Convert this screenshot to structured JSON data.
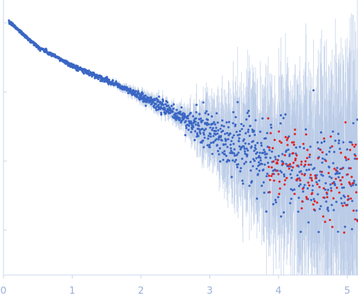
{
  "chart_data": {
    "type": "scatter",
    "title": "",
    "xlabel": "",
    "ylabel": "",
    "x_ticks": [
      "0",
      "1",
      "2",
      "3",
      "4",
      "5"
    ],
    "xlim": [
      0,
      5.15
    ],
    "y_scale": "log",
    "y_ticks_unlabeled": 4,
    "grid": false,
    "legend": "none",
    "colors": {
      "points_main": "#3a66c4",
      "points_outliers": "#e02424",
      "error_bars": "#b7c9e6",
      "axis": "#c9d4ec",
      "tick_text": "#9aaed6"
    },
    "series": [
      {
        "role": "main",
        "description_points": [
          {
            "x": 0.1,
            "y_decades": 0.0
          },
          {
            "x": 0.5,
            "y_decades": -0.35
          },
          {
            "x": 1.0,
            "y_decades": -0.62
          },
          {
            "x": 1.5,
            "y_decades": -0.83
          },
          {
            "x": 2.0,
            "y_decades": -1.06
          },
          {
            "x": 2.5,
            "y_decades": -1.32
          },
          {
            "x": 3.0,
            "y_decades": -1.6
          },
          {
            "x": 3.5,
            "y_decades": -1.85
          },
          {
            "x": 4.0,
            "y_decades": -2.05
          },
          {
            "x": 4.5,
            "y_decades": -2.2
          },
          {
            "x": 5.0,
            "y_decades": -2.3
          }
        ]
      },
      {
        "role": "outliers",
        "x_range": [
          3.85,
          5.15
        ]
      }
    ]
  }
}
